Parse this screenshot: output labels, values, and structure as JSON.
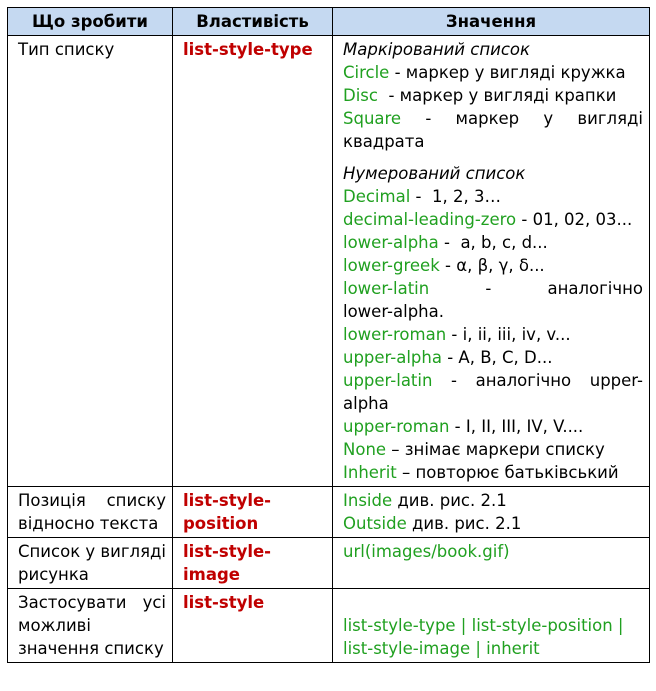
{
  "headers": [
    "Що зробити",
    "Властивість",
    "Значення"
  ],
  "rows": [
    {
      "what": "Тип списку",
      "prop": "list-style-type",
      "marked_heading": "Маркірований список",
      "marked": [
        {
          "key": "Circle",
          "desc": " - маркер у вигляді кружка"
        },
        {
          "key": "Disc",
          "desc": "  - маркер у вигляді крапки"
        },
        {
          "key": "Square",
          "desc": " - маркер у вигляді квадрата"
        }
      ],
      "numbered_heading": "Нумерований список",
      "numbered": [
        {
          "key": "Decimal",
          "desc": " -  1, 2, 3…"
        },
        {
          "key": "decimal-leading-zero",
          "desc": " - 01, 02, 03..."
        },
        {
          "key": "lower-alpha",
          "desc": " -  a, b, c, d..."
        },
        {
          "key": "lower-greek",
          "desc": " - α, β, γ, δ..."
        },
        {
          "key": "lower-latin",
          "desc": " - аналогічно lower-alpha."
        },
        {
          "key": "lower-roman",
          "desc": " - i, ii, iii, iv, v..."
        },
        {
          "key": "upper-alpha",
          "desc": " - A, B, C, D..."
        },
        {
          "key": "upper-latin",
          "desc": " - аналогічно upper-alpha"
        },
        {
          "key": "upper-roman",
          "desc": " - I, II, III, IV, V...."
        },
        {
          "key": "None",
          "desc": " – знімає маркери списку"
        },
        {
          "key": "Inherit",
          "desc": " – повторює батьківський"
        }
      ]
    },
    {
      "what": "Позиція списку відносно текста",
      "prop": "list-style-position",
      "values": [
        {
          "key": "Inside",
          "desc": " див. рис. 2.1"
        },
        {
          "key": "Outside",
          "desc": " див. рис. 2.1"
        }
      ]
    },
    {
      "what": "Список у вигляді рисунка",
      "prop": "list-style-image",
      "value": "url(images/book.gif)"
    },
    {
      "what": "Застосувати усі можливі значення списку",
      "prop": "list-style",
      "value": "list-style-type | list-style-position | list-style-image | inherit"
    }
  ]
}
